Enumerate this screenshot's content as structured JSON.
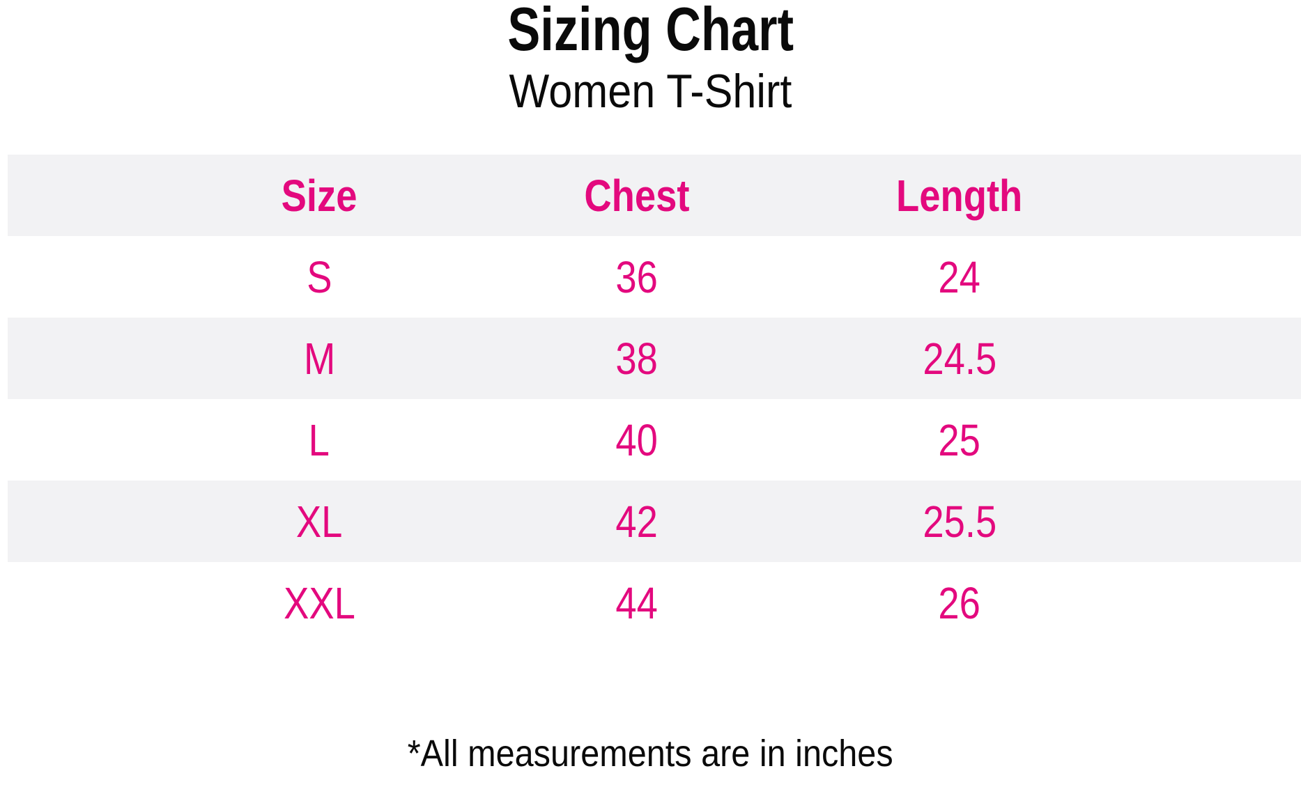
{
  "chart_data": {
    "type": "table",
    "title": "Sizing Chart",
    "subtitle": "Women T-Shirt",
    "columns": [
      "Size",
      "Chest",
      "Length"
    ],
    "rows": [
      [
        "S",
        "36",
        "24"
      ],
      [
        "M",
        "38",
        "24.5"
      ],
      [
        "L",
        "40",
        "25"
      ],
      [
        "XL",
        "42",
        "25.5"
      ],
      [
        "XXL",
        "44",
        "26"
      ]
    ],
    "footnote": "*All measurements are in inches",
    "layout": {
      "header_stripe": true,
      "stripe_pattern": "header gray, then alternating white/gray rows"
    }
  },
  "colors": {
    "accent_pink": "#E3097E",
    "stripe_gray": "#F2F2F4",
    "text_black": "#0A0A0A",
    "background": "#FFFFFF"
  }
}
